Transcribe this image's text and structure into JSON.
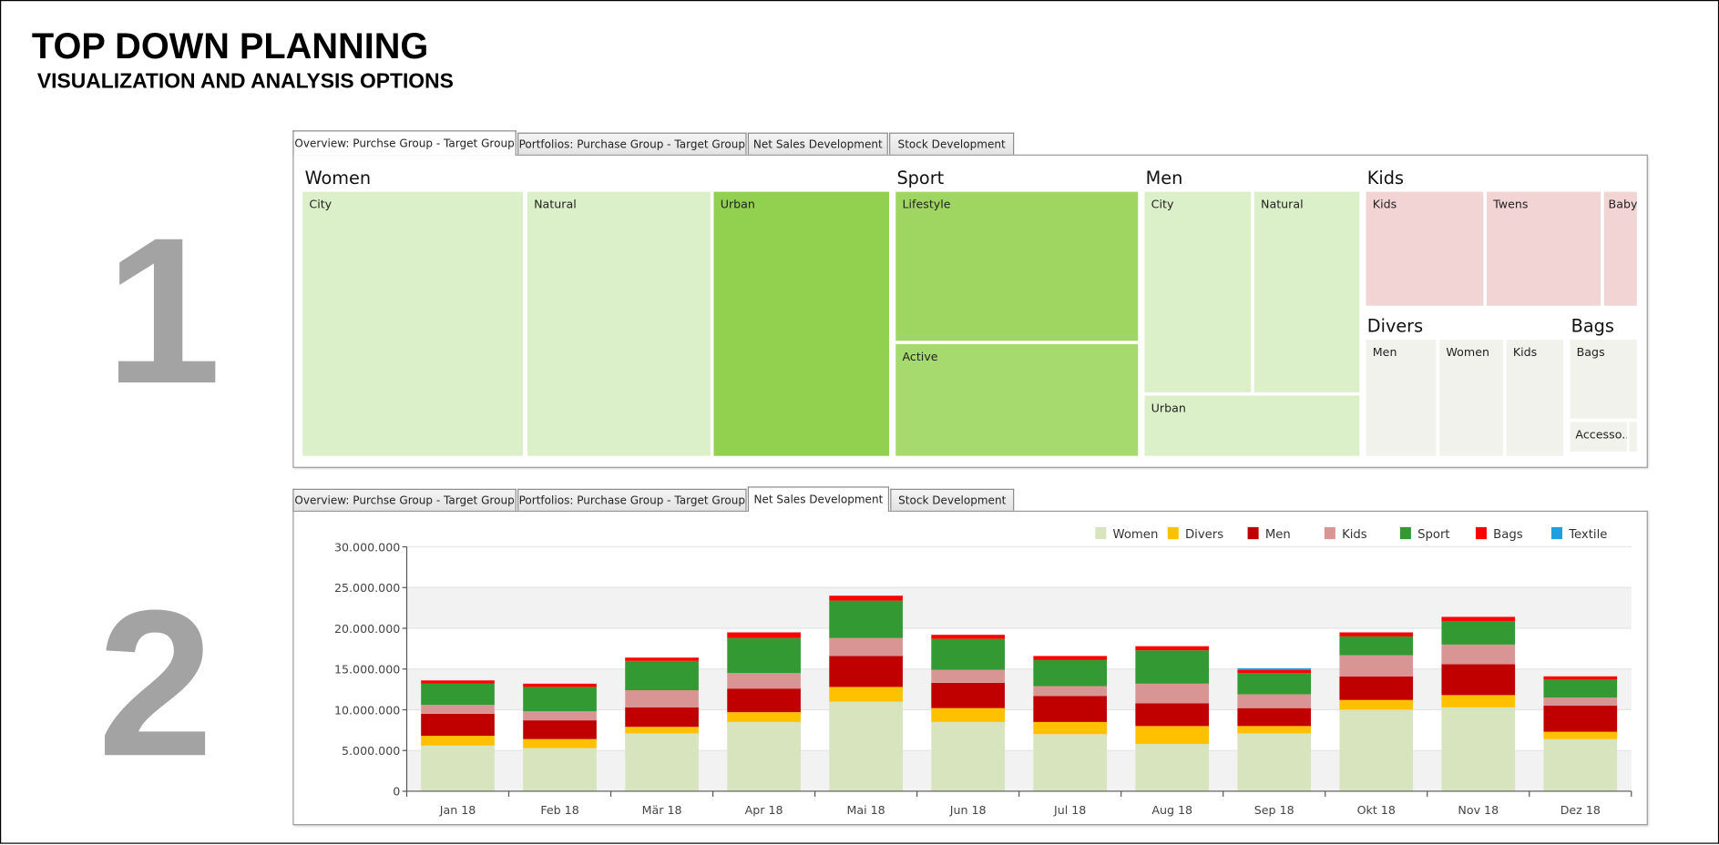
{
  "header": {
    "title": "TOP DOWN PLANNING",
    "subtitle": "VISUALIZATION AND ANALYSIS OPTIONS"
  },
  "section_numbers": [
    "1",
    "2"
  ],
  "tabs": [
    "Overview: Purchse Group - Target Group",
    "Portfolios: Purchase Group - Target Group",
    "Net Sales Development",
    "Stock Development"
  ],
  "panel1": {
    "active_tab": 0,
    "treemap": {
      "women": {
        "label": "Women",
        "cells": [
          "City",
          "Natural",
          "Urban"
        ]
      },
      "sport": {
        "label": "Sport",
        "cells": [
          "Lifestyle",
          "Active"
        ]
      },
      "men": {
        "label": "Men",
        "cells": [
          "City",
          "Natural",
          "Urban"
        ]
      },
      "kids": {
        "label": "Kids",
        "cells": [
          "Kids",
          "Twens",
          "Baby"
        ]
      },
      "divers": {
        "label": "Divers",
        "cells": [
          "Men",
          "Women",
          "Kids"
        ]
      },
      "bags": {
        "label": "Bags",
        "cells": [
          "Bags",
          "Accesso...",
          ""
        ]
      }
    },
    "colors": {
      "light_green": "#dbf0c8",
      "urban_green": "#92d050",
      "lifestyle_green": "#9fd662",
      "active_green": "#a6d96e",
      "kids_pink": "#f2d4d5",
      "divers_gray": "#f2f2ec"
    }
  },
  "panel2": {
    "active_tab": 2
  },
  "chart_data": {
    "type": "bar",
    "stacked": true,
    "categories": [
      "Jan 18",
      "Feb 18",
      "Mär 18",
      "Apr 18",
      "Mai 18",
      "Jun 18",
      "Jul 18",
      "Aug 18",
      "Sep 18",
      "Okt 18",
      "Nov 18",
      "Dez 18"
    ],
    "ylim": [
      0,
      30000000
    ],
    "yticks": [
      "0",
      "5.000.000",
      "10.000.000",
      "15.000.000",
      "20.000.000",
      "25.000.000",
      "30.000.000"
    ],
    "ytick_values": [
      0,
      5000000,
      10000000,
      15000000,
      20000000,
      25000000,
      30000000
    ],
    "legend_position": "top-right",
    "grid": "alternating horizontal bands",
    "series": [
      {
        "name": "Women",
        "color": "#d7e4bd",
        "values": [
          5600000,
          5300000,
          7100000,
          8500000,
          11000000,
          8500000,
          7000000,
          5800000,
          7100000,
          10000000,
          10300000,
          6400000
        ]
      },
      {
        "name": "Divers",
        "color": "#ffc000",
        "values": [
          1200000,
          1100000,
          800000,
          1200000,
          1800000,
          1700000,
          1500000,
          2200000,
          900000,
          1200000,
          1500000,
          900000
        ]
      },
      {
        "name": "Men",
        "color": "#c00000",
        "values": [
          2700000,
          2300000,
          2400000,
          2900000,
          3800000,
          3100000,
          3200000,
          2800000,
          2200000,
          2900000,
          3800000,
          3200000
        ]
      },
      {
        "name": "Kids",
        "color": "#d99594",
        "values": [
          1100000,
          1100000,
          2100000,
          1900000,
          2200000,
          1600000,
          1200000,
          2400000,
          1700000,
          2600000,
          2400000,
          1000000
        ]
      },
      {
        "name": "Sport",
        "color": "#339933",
        "values": [
          2600000,
          3000000,
          3600000,
          4300000,
          4600000,
          3800000,
          3200000,
          4100000,
          2600000,
          2300000,
          2900000,
          2200000
        ]
      },
      {
        "name": "Bags",
        "color": "#ff0000",
        "values": [
          400000,
          400000,
          400000,
          700000,
          600000,
          500000,
          500000,
          500000,
          400000,
          500000,
          500000,
          400000
        ]
      },
      {
        "name": "Textile",
        "color": "#1f9ee0",
        "values": [
          0,
          0,
          0,
          0,
          0,
          0,
          0,
          0,
          200000,
          0,
          0,
          0
        ]
      }
    ]
  }
}
